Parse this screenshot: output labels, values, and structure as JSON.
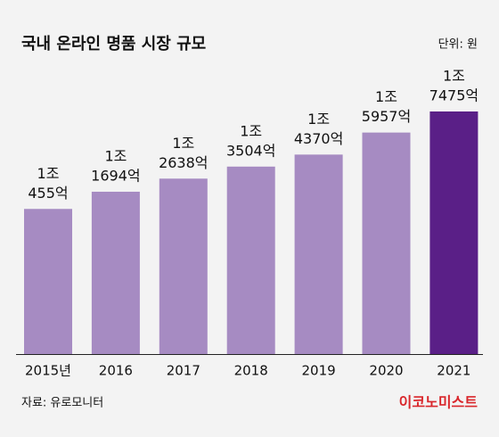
{
  "chart_data": {
    "type": "bar",
    "title": "국내 온라인 명품 시장 규모",
    "unit_note": "단위: 원",
    "categories": [
      "2015년",
      "2016",
      "2017",
      "2018",
      "2019",
      "2020",
      "2021"
    ],
    "values": [
      1045500000000,
      1169400000000,
      1263800000000,
      1350400000000,
      1437000000000,
      1595700000000,
      1747500000000
    ],
    "value_labels": [
      [
        "1조",
        "455억"
      ],
      [
        "1조",
        "1694억"
      ],
      [
        "1조",
        "2638억"
      ],
      [
        "1조",
        "3504억"
      ],
      [
        "1조",
        "4370억"
      ],
      [
        "1조",
        "5957억"
      ],
      [
        "1조",
        "7475억"
      ]
    ],
    "colors": [
      "#a68bc2",
      "#a68bc2",
      "#a68bc2",
      "#a68bc2",
      "#a68bc2",
      "#a68bc2",
      "#5a1f87"
    ],
    "source": "자료: 유로모니터",
    "brand": "이코노미스트"
  }
}
